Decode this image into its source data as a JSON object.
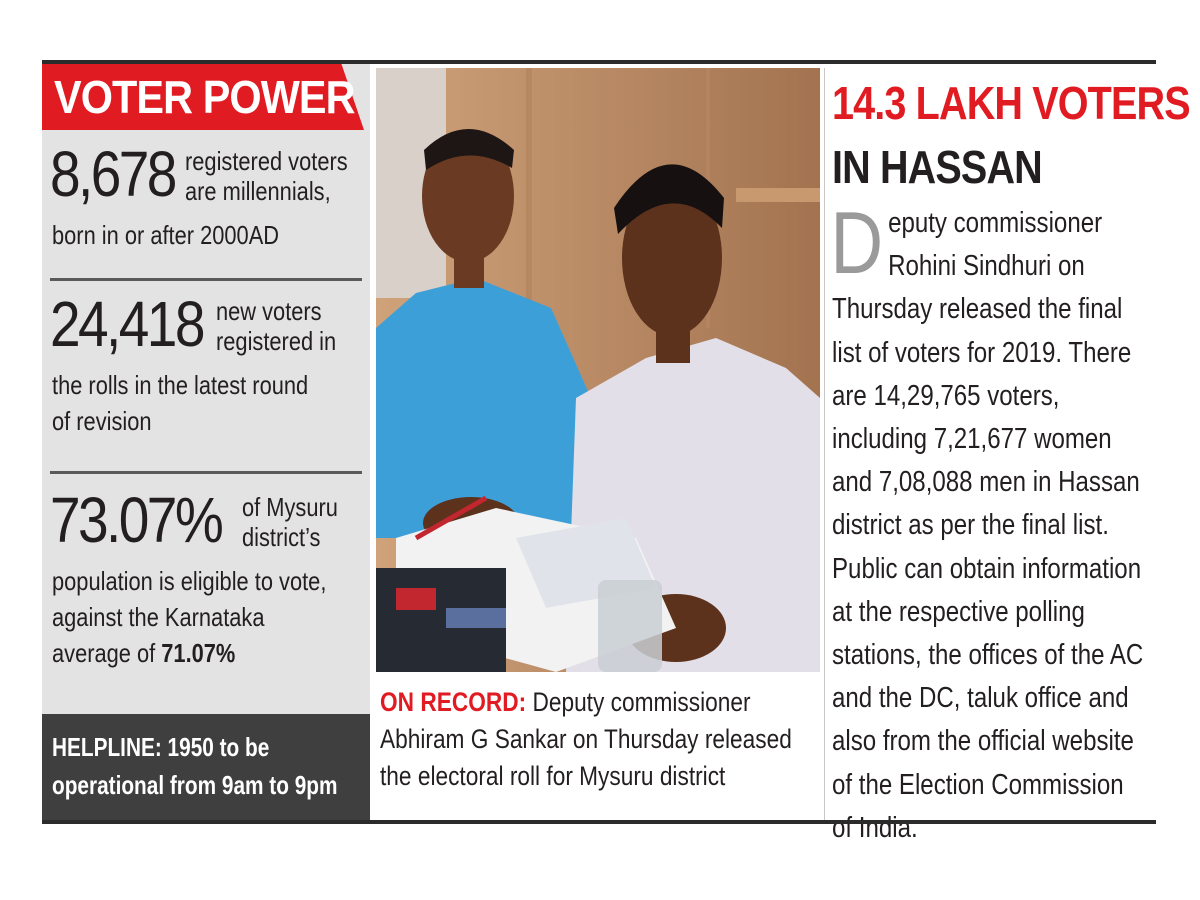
{
  "left_panel": {
    "banner_title": "VOTER POWER",
    "stats": [
      {
        "figure": "8,678",
        "side_lines": [
          "registered voters",
          "are millennials,"
        ],
        "rest_lines": [
          "born in or after 2000AD"
        ]
      },
      {
        "figure": "24,418",
        "side_lines": [
          "new voters",
          "registered in"
        ],
        "rest_lines": [
          "the rolls in the latest round",
          "of revision"
        ]
      },
      {
        "figure": "73.07%",
        "side_lines": [
          "of Mysuru",
          "district’s"
        ],
        "rest_lines": [
          "population is eligible to vote,",
          "against the Karnataka"
        ],
        "last_line_prefix": "average of ",
        "last_line_value": "71.07%"
      }
    ],
    "helpline": "HELPLINE: 1950 to be operational from 9am to 9pm"
  },
  "photo_caption": {
    "lead": "ON RECORD:",
    "text": " Deputy commissioner Abhiram G Sankar on Thursday released the electoral roll for Mysuru district"
  },
  "right_panel": {
    "headline_red": "14.3 LAKH VOTERS",
    "headline_black": "IN HASSAN",
    "drop_cap": "D",
    "body": "eputy commissioner Rohini Sindhuri on Thursday released the final list of voters for 2019. There are 14,29,765 voters, including 7,21,677 women and 7,08,088 men in Hassan district as per the final list. Public can obtain information at the respective polling stations, the offices of the AC and the DC, taluk office and also from the official website of the Election Commission of India."
  },
  "colors": {
    "accent_red": "#e11b22",
    "panel_gray": "#e3e3e3",
    "helpline_dark": "#3f3f3f"
  }
}
